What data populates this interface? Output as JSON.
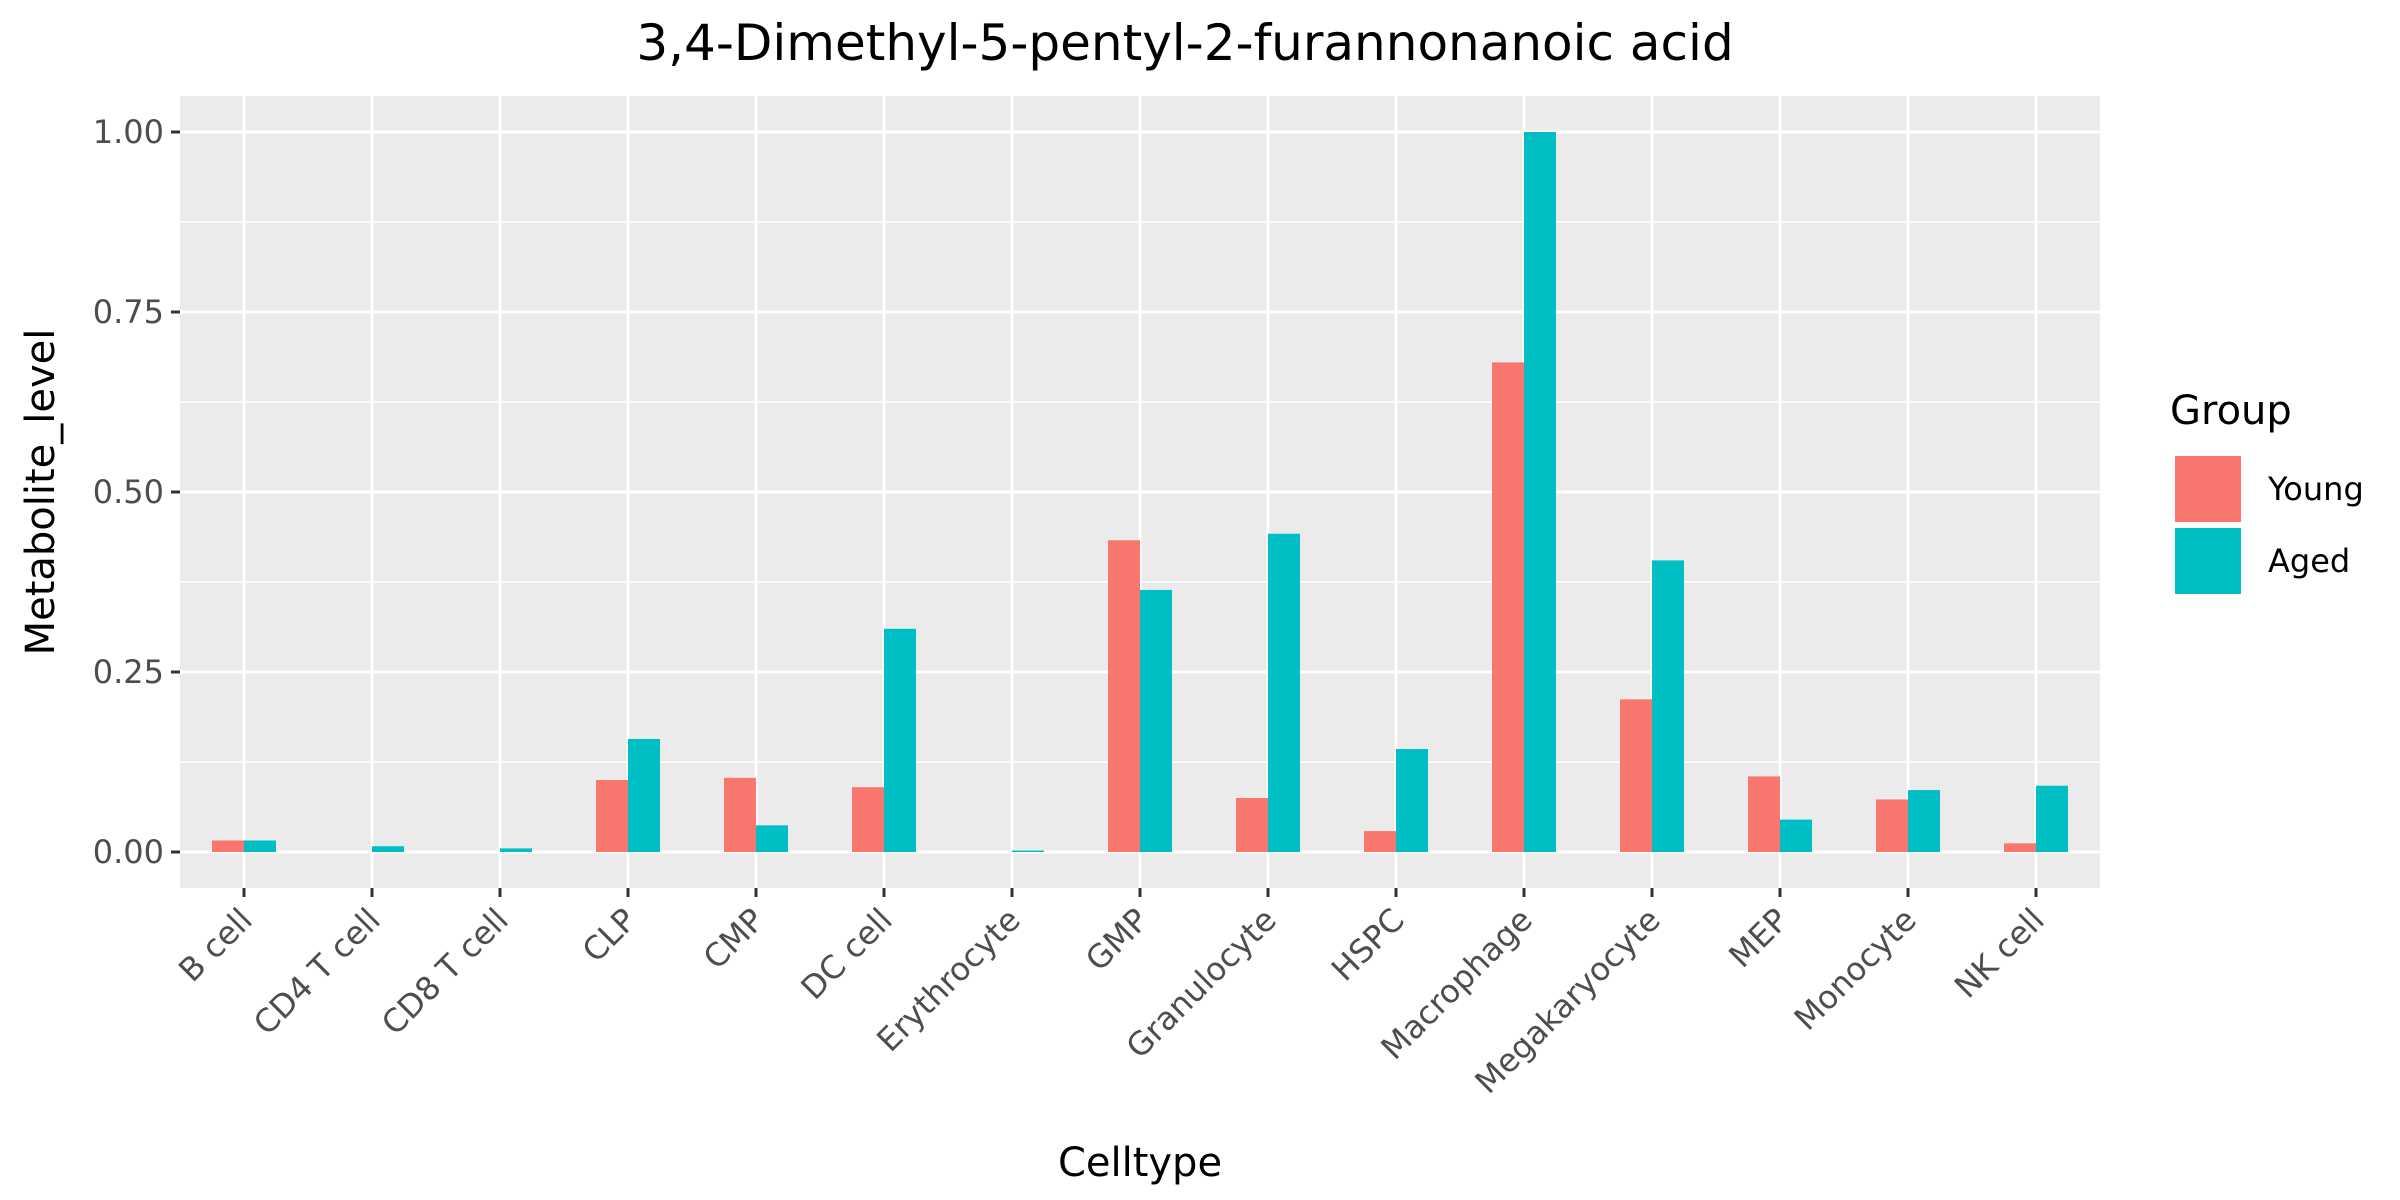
{
  "chart_data": {
    "type": "bar",
    "title": "3,4-Dimethyl-5-pentyl-2-furannonanoic acid",
    "xlabel": "Celltype",
    "ylabel": "Metabolite_level",
    "ylim": [
      -0.05,
      1.05
    ],
    "yticks": [
      0,
      0.25,
      0.5,
      0.75,
      1.0
    ],
    "ytick_labels": [
      "0.00",
      "0.25",
      "0.50",
      "0.75",
      "1.00"
    ],
    "grid": true,
    "categories": [
      "B cell",
      "CD4 T cell",
      "CD8 T cell",
      "CLP",
      "CMP",
      "DC cell",
      "Erythrocyte",
      "GMP",
      "Granulocyte",
      "HSPC",
      "Macrophage",
      "Megakaryocyte",
      "MEP",
      "Monocyte",
      "NK cell"
    ],
    "series": [
      {
        "name": "Young",
        "color": "#F8766D",
        "values": [
          0.016,
          0.0,
          0.0,
          0.1,
          0.103,
          0.09,
          0.0,
          0.433,
          0.075,
          0.029,
          0.68,
          0.212,
          0.105,
          0.073,
          0.012
        ]
      },
      {
        "name": "Aged",
        "color": "#00BFC4",
        "values": [
          0.016,
          0.008,
          0.005,
          0.157,
          0.037,
          0.31,
          0.002,
          0.364,
          0.442,
          0.143,
          1.0,
          0.405,
          0.045,
          0.086,
          0.092
        ]
      }
    ],
    "legend": {
      "title": "Group",
      "position": "right"
    }
  }
}
